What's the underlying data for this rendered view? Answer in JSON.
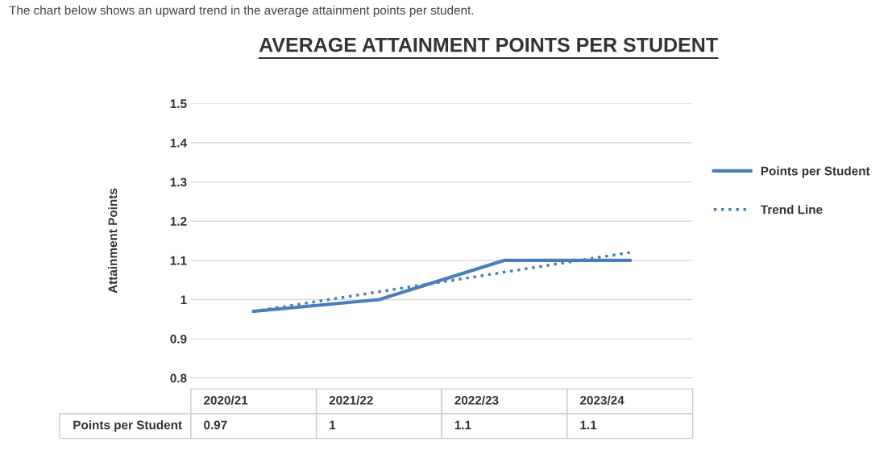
{
  "chart_data": {
    "type": "line",
    "title": "AVERAGE ATTAINMENT POINTS PER STUDENT",
    "annotations": [
      "The chart below shows an upward trend in the average attainment points per student."
    ],
    "ylabel": "Attainment Points",
    "categories": [
      "2020/21",
      "2021/22",
      "2022/23",
      "2023/24"
    ],
    "series": [
      {
        "name": "Points per Student",
        "color": "#4a7ebb",
        "values": [
          0.97,
          1,
          1.1,
          1.1
        ],
        "value_labels": [
          "0.97",
          "1",
          "1.1",
          "1.1"
        ]
      },
      {
        "name": "Trend Line",
        "color": "#4a7ebb",
        "values": [
          0.97,
          1.02,
          1.07,
          1.12
        ],
        "line_style": "dotted"
      }
    ],
    "ylim": [
      0.8,
      1.5
    ],
    "yticks": [
      0.8,
      0.9,
      1,
      1.1,
      1.2,
      1.3,
      1.4,
      1.5
    ],
    "grid": "y",
    "legend": "right",
    "tick_labels": "y"
  }
}
